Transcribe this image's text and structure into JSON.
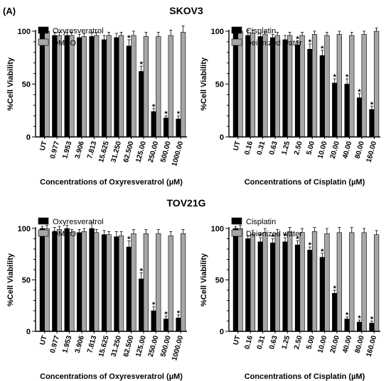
{
  "figure": {
    "panel_label": "(A)",
    "group_titles": [
      "SKOV3",
      "TOV21G"
    ]
  },
  "colors": {
    "treatment": "#000000",
    "control": "#a6a6a6"
  },
  "chart_data": [
    {
      "type": "bar",
      "group": "SKOV3",
      "categories": [
        "UT",
        "0.977",
        "1.953",
        "3.906",
        "7.813",
        "15.625",
        "31.250",
        "62.500",
        "125.00",
        "250.00",
        "500.00",
        "1000.00"
      ],
      "series": [
        {
          "name": "Oxyresveratrol",
          "values": [
            100,
            96,
            96,
            94,
            95,
            92,
            94,
            86,
            62,
            24,
            18,
            17
          ],
          "errors": [
            3,
            3,
            3,
            3,
            4,
            4,
            4,
            6,
            5,
            3,
            2,
            3
          ]
        },
        {
          "name": "DMSO",
          "values": [
            100,
            96,
            96,
            95,
            96,
            96,
            96,
            96,
            95,
            95,
            96,
            99
          ],
          "errors": [
            3,
            3,
            3,
            3,
            3,
            3,
            3,
            4,
            4,
            4,
            5,
            6
          ]
        }
      ],
      "significant": [
        false,
        false,
        false,
        false,
        false,
        false,
        false,
        true,
        true,
        true,
        true,
        true
      ],
      "xlabel": "Concentrations of Oxyresveratrol (µM)",
      "ylabel": "%Cell Viability",
      "ylim": [
        0,
        100
      ],
      "yticks": [
        0,
        50,
        100
      ],
      "legend": "top-left"
    },
    {
      "type": "bar",
      "group": "SKOV3",
      "categories": [
        "UT",
        "0.16",
        "0.31",
        "0.63",
        "1.25",
        "2.50",
        "5.00",
        "10.00",
        "20.00",
        "40.00",
        "80.00",
        "160.00"
      ],
      "series": [
        {
          "name": "Cisplatin",
          "values": [
            100,
            96,
            95,
            94,
            92,
            87,
            83,
            77,
            51,
            50,
            37,
            26
          ],
          "errors": [
            3,
            5,
            3,
            3,
            4,
            4,
            5,
            5,
            4,
            5,
            4,
            3
          ]
        },
        {
          "name": "Deionized water",
          "values": [
            100,
            98,
            97,
            96,
            96,
            96,
            97,
            96,
            97,
            96,
            97,
            100
          ],
          "errors": [
            3,
            3,
            3,
            3,
            3,
            3,
            3,
            3,
            3,
            3,
            3,
            3
          ]
        }
      ],
      "significant": [
        false,
        false,
        false,
        false,
        false,
        true,
        true,
        true,
        true,
        true,
        true,
        true
      ],
      "xlabel": "Concentrations of Cisplatin (µM)",
      "ylabel": "%Cell Viability",
      "ylim": [
        0,
        100
      ],
      "yticks": [
        0,
        50,
        100
      ],
      "legend": "top-left"
    },
    {
      "type": "bar",
      "group": "TOV21G",
      "categories": [
        "UT",
        "0.977",
        "1.953",
        "3.906",
        "7.813",
        "15.625",
        "31.250",
        "62.500",
        "125.00",
        "250.00",
        "500.00",
        "1000.00"
      ],
      "series": [
        {
          "name": "Oxyresveratrol",
          "values": [
            100,
            97,
            100,
            96,
            100,
            94,
            92,
            82,
            51,
            20,
            12,
            13
          ],
          "errors": [
            2,
            4,
            3,
            3,
            6,
            4,
            5,
            6,
            6,
            4,
            3,
            3
          ]
        },
        {
          "name": "DMSO",
          "values": [
            100,
            99,
            96,
            97,
            96,
            94,
            93,
            95,
            95,
            95,
            93,
            95
          ],
          "errors": [
            3,
            3,
            3,
            3,
            3,
            3,
            4,
            4,
            4,
            4,
            4,
            4
          ]
        }
      ],
      "significant": [
        false,
        false,
        false,
        false,
        false,
        false,
        false,
        true,
        true,
        true,
        true,
        true
      ],
      "xlabel": "Concentrations of Oxyresveratrol (µM)",
      "ylabel": "%Cell Viability",
      "ylim": [
        0,
        100
      ],
      "yticks": [
        0,
        50,
        100
      ],
      "legend": "top-left"
    },
    {
      "type": "bar",
      "group": "TOV21G",
      "categories": [
        "UT",
        "0.16",
        "0.31",
        "0.63",
        "1.25",
        "2.50",
        "5.00",
        "10.00",
        "20.00",
        "40.00",
        "80.00",
        "160.00"
      ],
      "series": [
        {
          "name": "Cisplatin",
          "values": [
            100,
            90,
            87,
            86,
            87,
            84,
            79,
            72,
            37,
            12,
            9,
            8
          ],
          "errors": [
            2,
            3,
            4,
            4,
            4,
            4,
            3,
            4,
            3,
            2,
            2,
            2
          ]
        },
        {
          "name": "Deionized water",
          "values": [
            100,
            94,
            96,
            95,
            97,
            96,
            97,
            95,
            96,
            96,
            96,
            94
          ],
          "errors": [
            3,
            4,
            4,
            4,
            4,
            4,
            4,
            5,
            5,
            5,
            4,
            4
          ]
        }
      ],
      "significant": [
        false,
        false,
        true,
        true,
        true,
        true,
        true,
        true,
        true,
        true,
        true,
        true
      ],
      "xlabel": "Concentrations of Cisplatin (µM)",
      "ylabel": "%Cell Viability",
      "ylim": [
        0,
        100
      ],
      "yticks": [
        0,
        50,
        100
      ],
      "legend": "top-left"
    }
  ]
}
